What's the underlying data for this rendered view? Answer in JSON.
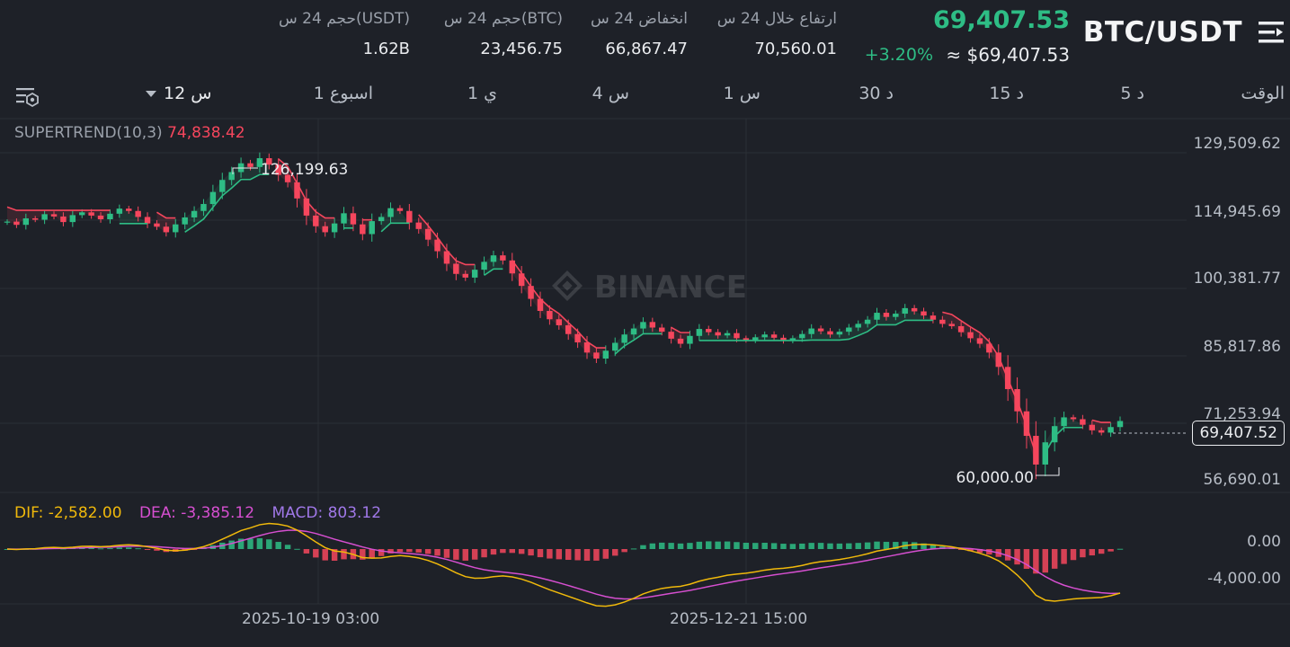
{
  "header": {
    "pair": "BTC/USDT",
    "last_price": "69,407.53",
    "usd_price": "≈ $69,407.53",
    "change_pct": "+3.20%",
    "stats": [
      {
        "label": "ارتفاع خلال 24 س",
        "value": "70,560.01"
      },
      {
        "label": "انخفاض 24 س",
        "value": "66,867.47"
      },
      {
        "label": "حجم 24 س(BTC)",
        "value": "23,456.75"
      },
      {
        "label": "حجم 24 س(USDT)",
        "value": "1.62B"
      }
    ]
  },
  "timeframes": {
    "time_label": "الوقت",
    "items": [
      "5 د",
      "15 د",
      "30 د",
      "1 س",
      "4 س",
      "1 ي",
      "1 اسبوع"
    ],
    "active": "12 س"
  },
  "indicators": {
    "supertrend_name": "SUPERTREND(10,3)",
    "supertrend_value": "74,838.42",
    "dif_label": "DIF: -2,582.00",
    "dea_label": "DEA: -3,385.12",
    "macd_label": "MACD: 803.12"
  },
  "price_axis": [
    "129,509.62",
    "114,945.69",
    "100,381.77",
    "85,817.86",
    "71,253.94",
    "56,690.01"
  ],
  "macd_axis": [
    "0.00",
    "-4,000.00"
  ],
  "time_axis": [
    "2025-10-19 03:00",
    "2025-12-21 15:00"
  ],
  "current_price_tag": "69,407.52",
  "high_marker": "126,199.63",
  "low_marker": "60,000.00",
  "watermark": "BINANCE",
  "colors": {
    "up": "#2ebd85",
    "down": "#f6465d",
    "dif": "#f0b90b",
    "dea": "#d64fd0",
    "macd": "#a078e8",
    "background": "#1e2128"
  },
  "chart_data": {
    "type": "candlestick",
    "ylim": [
      56690.01,
      129509.62
    ],
    "closes": [
      112500,
      111800,
      113200,
      112900,
      114100,
      113600,
      112400,
      113900,
      114500,
      113800,
      113000,
      114200,
      115300,
      114800,
      113500,
      112100,
      111400,
      110200,
      111900,
      113400,
      114800,
      116300,
      118900,
      121500,
      123200,
      125100,
      124300,
      126199.63,
      124800,
      122600,
      121000,
      117500,
      113800,
      111500,
      110200,
      112100,
      114300,
      111900,
      109800,
      112600,
      113500,
      115400,
      114800,
      112300,
      110900,
      108600,
      106100,
      103400,
      101200,
      100400,
      102100,
      103800,
      105200,
      104100,
      101300,
      98600,
      95800,
      93200,
      91400,
      90100,
      88200,
      86400,
      84200,
      82900,
      84600,
      86300,
      88100,
      89400,
      90800,
      89600,
      88700,
      87200,
      86100,
      87800,
      89300,
      88600,
      87900,
      88400,
      87300,
      86900,
      87500,
      88100,
      87400,
      86800,
      87300,
      88200,
      89400,
      88800,
      88100,
      88700,
      89600,
      90400,
      91300,
      92800,
      91900,
      92600,
      93800,
      93100,
      92200,
      91300,
      90400,
      89900,
      88600,
      87300,
      86100,
      84200,
      81100,
      76300,
      71500,
      66200,
      60000,
      64800,
      68300,
      70200,
      69800,
      68600,
      67400,
      66900,
      68100,
      69407.53
    ]
  }
}
